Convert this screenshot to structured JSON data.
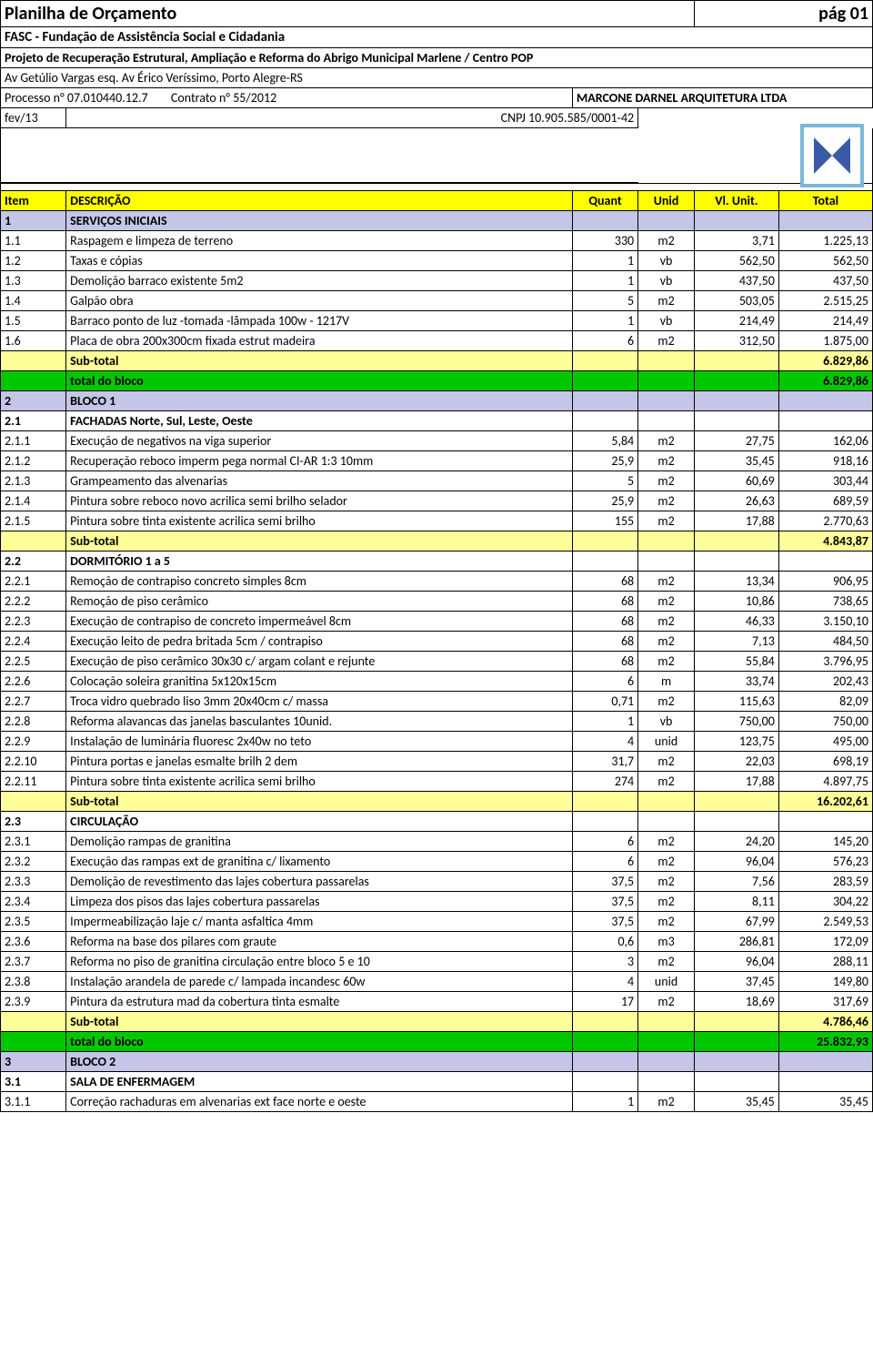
{
  "header": {
    "title": "Planilha de Orçamento",
    "page": "pág 01",
    "org": "FASC - Fundação de Assistência Social e Cidadania",
    "project": "Projeto de Recuperação Estrutural, Ampliação e Reforma do Abrigo Municipal Marlene / Centro POP",
    "addr": "Av Getúlio Vargas esq. Av Érico Veríssimo, Porto Alegre-RS",
    "proc_label": "Processo n° 07.010440.12.7",
    "contrato_label": "Contrato n° 55/2012",
    "company": "MARCONE DARNEL  ARQUITETURA LTDA",
    "date": "fev/13",
    "cnpj": "CNPJ 10.905.585/0001-42"
  },
  "columns": {
    "item": "Item",
    "desc": "DESCRIÇÃO",
    "quant": "Quant",
    "unid": "Unid",
    "unit": "Vl. Unit.",
    "total": "Total"
  },
  "labels": {
    "subtotal": "Sub-total",
    "total_bloco": "total do bloco"
  },
  "rows": [
    {
      "t": "section",
      "item": "1",
      "desc": "SERVIÇOS  INICIAIS"
    },
    {
      "t": "data",
      "item": "1.1",
      "desc": "Raspagem e limpeza de terreno",
      "q": "330",
      "u": "m2",
      "vu": "3,71",
      "vt": "1.225,13"
    },
    {
      "t": "data",
      "item": "1.2",
      "desc": "Taxas e cópias",
      "q": "1",
      "u": "vb",
      "vu": "562,50",
      "vt": "562,50"
    },
    {
      "t": "data",
      "item": "1.3",
      "desc": "Demolição barraco  existente    5m2",
      "q": "1",
      "u": "vb",
      "vu": "437,50",
      "vt": "437,50"
    },
    {
      "t": "data",
      "item": "1.4",
      "desc": "Galpão obra",
      "q": "5",
      "u": "m2",
      "vu": "503,05",
      "vt": "2.515,25"
    },
    {
      "t": "data",
      "item": "1.5",
      "desc": "Barraco  ponto de luz -tomada -lâmpada 100w - 1217V",
      "q": "1",
      "u": "vb",
      "vu": "214,49",
      "vt": "214,49"
    },
    {
      "t": "data",
      "item": "1.6",
      "desc": "Placa de obra 200x300cm fixada estrut madeira",
      "q": "6",
      "u": "m2",
      "vu": "312,50",
      "vt": "1.875,00"
    },
    {
      "t": "subtotal",
      "vt": "6.829,86"
    },
    {
      "t": "totalbloco",
      "vt": "6.829,86"
    },
    {
      "t": "section",
      "item": "2",
      "desc": "BLOCO 1"
    },
    {
      "t": "section2",
      "item": "2.1",
      "desc": "FACHADAS  Norte, Sul, Leste, Oeste"
    },
    {
      "t": "data",
      "item": "2.1.1",
      "desc": "Execução de negativos na viga superior",
      "q": "5,84",
      "u": "m2",
      "vu": "27,75",
      "vt": "162,06"
    },
    {
      "t": "data",
      "item": "2.1.2",
      "desc": "Recuperação reboco imperm pega normal CI-AR 1:3 10mm",
      "q": "25,9",
      "u": "m2",
      "vu": "35,45",
      "vt": "918,16"
    },
    {
      "t": "data",
      "item": "2.1.3",
      "desc": "Grampeamento das alvenarias",
      "q": "5",
      "u": "m2",
      "vu": "60,69",
      "vt": "303,44"
    },
    {
      "t": "data",
      "item": "2.1.4",
      "desc": "Pintura sobre reboco novo acrilica semi brilho selador",
      "q": "25,9",
      "u": "m2",
      "vu": "26,63",
      "vt": "689,59"
    },
    {
      "t": "data",
      "item": "2.1.5",
      "desc": "Pintura  sobre tinta existente acrilica semi brilho",
      "q": "155",
      "u": "m2",
      "vu": "17,88",
      "vt": "2.770,63"
    },
    {
      "t": "subtotal",
      "vt": "4.843,87"
    },
    {
      "t": "section2",
      "item": "2.2",
      "desc": "DORMITÓRIO 1 a 5"
    },
    {
      "t": "data",
      "item": "2.2.1",
      "desc": "Remoção de contrapiso concreto simples 8cm",
      "q": "68",
      "u": "m2",
      "vu": "13,34",
      "vt": "906,95"
    },
    {
      "t": "data",
      "item": "2.2.2",
      "desc": "Remoção de piso cerâmico",
      "q": "68",
      "u": "m2",
      "vu": "10,86",
      "vt": "738,65"
    },
    {
      "t": "data",
      "item": "2.2.3",
      "desc": "Execução de contrapiso de concreto  impermeável 8cm",
      "q": "68",
      "u": "m2",
      "vu": "46,33",
      "vt": "3.150,10"
    },
    {
      "t": "data",
      "item": "2.2.4",
      "desc": "Execução leito de pedra  britada  5cm /  contrapiso",
      "q": "68",
      "u": "m2",
      "vu": "7,13",
      "vt": "484,50"
    },
    {
      "t": "data",
      "item": "2.2.5",
      "desc": "Execução de piso cerâmico 30x30 c/ argam colant e rejunte",
      "q": "68",
      "u": "m2",
      "vu": "55,84",
      "vt": "3.796,95"
    },
    {
      "t": "data",
      "item": "2.2.6",
      "desc": "Colocação  soleira granitina  5x120x15cm",
      "q": "6",
      "u": "m",
      "vu": "33,74",
      "vt": "202,43"
    },
    {
      "t": "data",
      "item": "2.2.7",
      "desc": "Troca  vidro  quebrado liso 3mm  20x40cm c/ massa",
      "q": "0,71",
      "u": "m2",
      "vu": "115,63",
      "vt": "82,09"
    },
    {
      "t": "data",
      "item": "2.2.8",
      "desc": "Reforma  alavancas das janelas basculantes  10unid.",
      "q": "1",
      "u": "vb",
      "vu": "750,00",
      "vt": "750,00"
    },
    {
      "t": "data",
      "item": "2.2.9",
      "desc": "Instalação de luminária fluoresc 2x40w no teto",
      "q": "4",
      "u": "unid",
      "vu": "123,75",
      "vt": "495,00"
    },
    {
      "t": "data",
      "item": "2.2.10",
      "desc": "Pintura portas e janelas  esmalte  brilh 2 dem",
      "q": "31,7",
      "u": "m2",
      "vu": "22,03",
      "vt": "698,19"
    },
    {
      "t": "data",
      "item": "2.2.11",
      "desc": "Pintura  sobre tinta existente acrilica semi brilho",
      "q": "274",
      "u": "m2",
      "vu": "17,88",
      "vt": "4.897,75"
    },
    {
      "t": "subtotal",
      "vt": "16.202,61"
    },
    {
      "t": "section2",
      "item": "2.3",
      "desc": "CIRCULAÇÃO"
    },
    {
      "t": "data",
      "item": "2.3.1",
      "desc": "Demolição rampas de granitina",
      "q": "6",
      "u": "m2",
      "vu": "24,20",
      "vt": "145,20"
    },
    {
      "t": "data",
      "item": "2.3.2",
      "desc": "Execução das rampas ext de granitina  c/ lixamento",
      "q": "6",
      "u": "m2",
      "vu": "96,04",
      "vt": "576,23"
    },
    {
      "t": "data",
      "item": "2.3.3",
      "desc": "Demolição de revestimento das lajes  cobertura  passarelas",
      "q": "37,5",
      "u": "m2",
      "vu": "7,56",
      "vt": "283,59"
    },
    {
      "t": "data",
      "item": "2.3.4",
      "desc": "Limpeza dos pisos das lajes cobertura passarelas",
      "q": "37,5",
      "u": "m2",
      "vu": "8,11",
      "vt": "304,22"
    },
    {
      "t": "data",
      "item": "2.3.5",
      "desc": "Impermeabilização laje c/ manta asfaltica 4mm",
      "q": "37,5",
      "u": "m2",
      "vu": "67,99",
      "vt": "2.549,53"
    },
    {
      "t": "data",
      "item": "2.3.6",
      "desc": "Reforma na base dos pilares com graute",
      "q": "0,6",
      "u": "m3",
      "vu": "286,81",
      "vt": "172,09"
    },
    {
      "t": "data",
      "item": "2.3.7",
      "desc": "Reforma no piso de granitina circulação entre bloco 5 e 10",
      "q": "3",
      "u": "m2",
      "vu": "96,04",
      "vt": "288,11"
    },
    {
      "t": "data",
      "item": "2.3.8",
      "desc": "Instalação arandela de parede c/ lampada incandesc 60w",
      "q": "4",
      "u": "unid",
      "vu": "37,45",
      "vt": "149,80"
    },
    {
      "t": "data",
      "item": "2.3.9",
      "desc": "Pintura da estrutura mad  da cobertura  tinta esmalte",
      "q": "17",
      "u": "m2",
      "vu": "18,69",
      "vt": "317,69"
    },
    {
      "t": "subtotal",
      "vt": "4.786,46"
    },
    {
      "t": "totalbloco",
      "vt": "25.832,93"
    },
    {
      "t": "section",
      "item": "3",
      "desc": "BLOCO 2"
    },
    {
      "t": "section2",
      "item": "3.1",
      "desc": "SALA DE ENFERMAGEM"
    },
    {
      "t": "data",
      "item": "3.1.1",
      "desc": "Correção rachaduras em alvenarias ext face norte e oeste",
      "q": "1",
      "u": "m2",
      "vu": "35,45",
      "vt": "35,45"
    }
  ],
  "styles": {
    "header_bg": "#ffff00",
    "section_bg": "#c5c5e8",
    "subtotal_bg": "#ffff99",
    "total_bg": "#00c800",
    "font_family": "Calibri, Arial, sans-serif",
    "font_size_pt": 11,
    "title_font_size_pt": 15
  }
}
